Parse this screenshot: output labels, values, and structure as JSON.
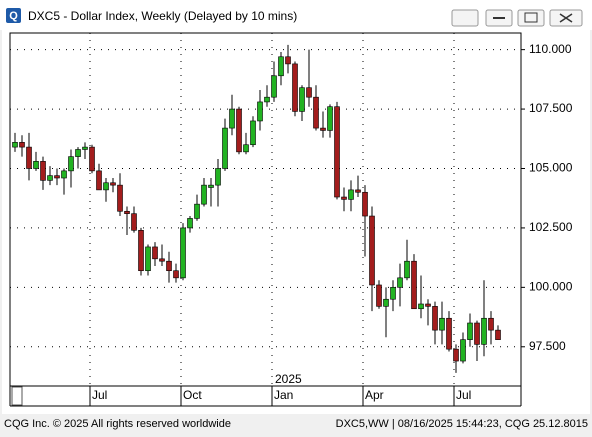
{
  "window": {
    "title": "DXC5 - Dollar Index, Weekly (Delayed by 10 mins)",
    "footer_left": "CQG Inc. © 2025 All rights reserved worldwide",
    "footer_right": "DXC5,WW | 08/16/2025 15:44:23, CQG 25.12.8015"
  },
  "chart_data": {
    "type": "candlestick",
    "categories": [
      null,
      null,
      null,
      null,
      null,
      null,
      null,
      null,
      null,
      null,
      null,
      "Jul",
      null,
      null,
      null,
      null,
      null,
      null,
      null,
      null,
      null,
      null,
      null,
      null,
      "Oct",
      null,
      null,
      null,
      null,
      null,
      null,
      null,
      null,
      null,
      null,
      null,
      null,
      "Jan",
      null,
      null,
      null,
      null,
      null,
      null,
      null,
      null,
      null,
      null,
      null,
      null,
      "Apr",
      null,
      null,
      null,
      null,
      null,
      null,
      null,
      null,
      null,
      null,
      null,
      null,
      "Jul",
      null,
      null,
      null,
      null,
      null,
      null
    ],
    "year_label": "2025",
    "open": [
      105.9,
      106.1,
      105.9,
      105.0,
      105.3,
      104.5,
      104.7,
      104.6,
      104.9,
      105.5,
      105.8,
      105.9,
      104.9,
      104.1,
      104.4,
      104.3,
      103.2,
      103.1,
      102.4,
      100.7,
      101.7,
      101.2,
      101.1,
      100.7,
      100.4,
      102.5,
      102.9,
      103.5,
      104.2,
      104.3,
      105.0,
      106.7,
      107.5,
      105.7,
      106.0,
      107.0,
      107.8,
      108.0,
      108.9,
      109.7,
      109.4,
      107.4,
      108.4,
      108.0,
      106.7,
      106.6,
      107.6,
      103.8,
      103.7,
      104.1,
      104.0,
      103.0,
      100.1,
      99.2,
      99.5,
      100.0,
      100.4,
      101.1,
      99.1,
      99.3,
      99.2,
      98.2,
      98.7,
      97.4,
      96.9,
      97.8,
      98.5,
      97.6,
      98.7,
      98.2
    ],
    "high": [
      106.5,
      106.4,
      106.5,
      105.7,
      105.5,
      105.1,
      105.0,
      105.0,
      105.8,
      105.9,
      106.1,
      106.0,
      105.2,
      104.6,
      104.6,
      104.8,
      103.4,
      103.4,
      102.5,
      101.8,
      101.9,
      101.8,
      101.5,
      101.0,
      102.7,
      103.0,
      103.9,
      104.6,
      104.6,
      105.4,
      107.1,
      108.1,
      107.6,
      106.5,
      107.2,
      108.3,
      108.5,
      109.5,
      109.9,
      110.2,
      109.5,
      108.5,
      110.0,
      108.5,
      107.4,
      107.7,
      107.8,
      104.2,
      104.5,
      104.7,
      104.3,
      103.4,
      100.3,
      100.0,
      100.3,
      101.0,
      102.0,
      101.4,
      100.5,
      99.5,
      99.4,
      99.4,
      99.0,
      97.6,
      98.1,
      98.9,
      98.6,
      100.3,
      99.0,
      98.4
    ],
    "low": [
      105.7,
      105.5,
      104.5,
      104.9,
      104.1,
      104.3,
      104.3,
      103.9,
      104.2,
      105.0,
      105.4,
      104.8,
      104.1,
      103.6,
      104.0,
      103.0,
      102.2,
      102.3,
      100.5,
      100.5,
      100.9,
      100.9,
      100.2,
      100.2,
      100.3,
      102.3,
      102.8,
      103.4,
      103.4,
      103.4,
      104.9,
      106.4,
      105.6,
      105.6,
      105.9,
      106.6,
      107.6,
      107.8,
      108.5,
      109.0,
      107.2,
      107.0,
      107.6,
      106.6,
      106.3,
      106.3,
      103.7,
      103.2,
      103.2,
      103.8,
      101.3,
      99.0,
      99.1,
      97.9,
      99.0,
      99.2,
      100.3,
      99.1,
      98.7,
      98.4,
      97.6,
      97.6,
      97.3,
      96.4,
      96.8,
      97.5,
      96.9,
      97.1,
      97.6,
      97.8
    ],
    "close": [
      106.1,
      105.9,
      105.0,
      105.3,
      104.5,
      104.7,
      104.6,
      104.9,
      105.5,
      105.8,
      105.9,
      104.9,
      104.1,
      104.4,
      104.3,
      103.2,
      103.1,
      102.4,
      100.7,
      101.7,
      101.2,
      101.1,
      100.7,
      100.4,
      102.5,
      102.9,
      103.5,
      104.3,
      104.3,
      105.0,
      106.7,
      107.5,
      105.7,
      106.0,
      107.0,
      107.8,
      108.0,
      108.9,
      109.7,
      109.4,
      107.4,
      108.4,
      108.0,
      106.7,
      106.6,
      107.6,
      103.8,
      103.7,
      104.1,
      104.0,
      103.0,
      100.1,
      99.2,
      99.5,
      100.0,
      100.4,
      101.1,
      99.1,
      99.3,
      99.2,
      98.2,
      98.7,
      97.4,
      96.9,
      97.8,
      98.5,
      97.6,
      98.7,
      98.2,
      97.8
    ],
    "up_color": "#22b322",
    "down_color": "#a31d1d",
    "ylim": [
      95.85,
      110.7
    ],
    "yticks": [
      {
        "value": 97.5,
        "label": "97.500"
      },
      {
        "value": 100,
        "label": "100.000"
      },
      {
        "value": 102.5,
        "label": "102.500"
      },
      {
        "value": 105,
        "label": "105.000"
      },
      {
        "value": 107.5,
        "label": "107.500"
      },
      {
        "value": 110,
        "label": "110.000"
      }
    ],
    "grid": true
  }
}
